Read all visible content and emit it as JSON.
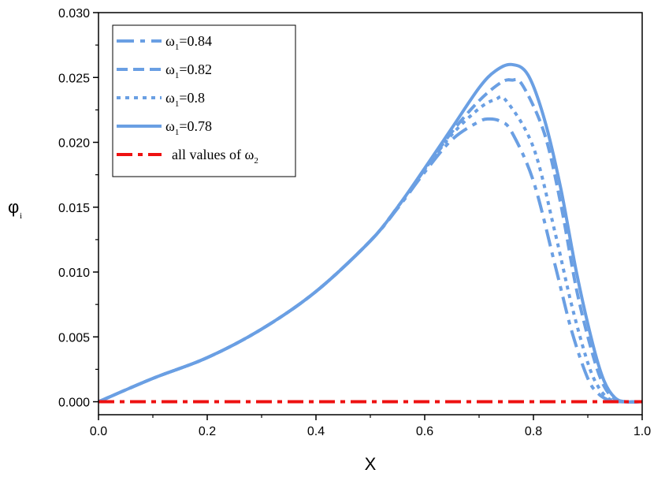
{
  "chart_data": {
    "type": "line",
    "xlabel": "X",
    "ylabel": {
      "base": "φ",
      "sub": "i"
    },
    "xlim": [
      0.0,
      1.0
    ],
    "ylim": [
      -0.001,
      0.03
    ],
    "x_ticks": [
      "0.0",
      "0.2",
      "0.4",
      "0.6",
      "0.8",
      "1.0"
    ],
    "y_ticks": [
      "0.000",
      "0.005",
      "0.010",
      "0.015",
      "0.020",
      "0.025",
      "0.030"
    ],
    "grid": false,
    "legend_position": "top-left",
    "colors": {
      "blue": "#6a9fe3",
      "red": "#ee1111"
    },
    "series": [
      {
        "name": "ω1=0.84",
        "legend_label": {
          "base": "ω",
          "sub": "1",
          "rest": "=0.84"
        },
        "color": "#6a9fe3",
        "style": "dash-dot",
        "x": [
          0.0,
          0.1,
          0.2,
          0.3,
          0.4,
          0.5,
          0.55,
          0.6,
          0.65,
          0.7,
          0.72,
          0.74,
          0.76,
          0.8,
          0.84,
          0.87,
          0.9,
          0.92,
          0.94,
          0.96,
          1.0
        ],
        "y": [
          0.0,
          0.0018,
          0.0034,
          0.0056,
          0.0085,
          0.0124,
          0.0149,
          0.0177,
          0.0202,
          0.0216,
          0.0218,
          0.0216,
          0.0208,
          0.017,
          0.0105,
          0.0055,
          0.0018,
          0.0006,
          0.0001,
          0.0,
          0.0
        ]
      },
      {
        "name": "ω1=0.82",
        "legend_label": {
          "base": "ω",
          "sub": "1",
          "rest": "=0.82"
        },
        "color": "#6a9fe3",
        "style": "dash",
        "x": [
          0.0,
          0.1,
          0.2,
          0.3,
          0.4,
          0.5,
          0.55,
          0.6,
          0.65,
          0.7,
          0.74,
          0.76,
          0.78,
          0.82,
          0.85,
          0.88,
          0.91,
          0.93,
          0.95,
          0.97,
          1.0
        ],
        "y": [
          0.0,
          0.0018,
          0.0034,
          0.0056,
          0.0085,
          0.0124,
          0.015,
          0.0179,
          0.0208,
          0.0232,
          0.0246,
          0.0248,
          0.0244,
          0.0207,
          0.0153,
          0.0085,
          0.0035,
          0.0012,
          0.0002,
          0.0,
          0.0
        ]
      },
      {
        "name": "ω1=0.8",
        "legend_label": {
          "base": "ω",
          "sub": "1",
          "rest": "=0.8"
        },
        "color": "#6a9fe3",
        "style": "dot",
        "x": [
          0.0,
          0.1,
          0.2,
          0.3,
          0.4,
          0.5,
          0.55,
          0.6,
          0.65,
          0.7,
          0.73,
          0.75,
          0.8,
          0.84,
          0.87,
          0.9,
          0.92,
          0.94,
          0.96,
          1.0
        ],
        "y": [
          0.0,
          0.0018,
          0.0034,
          0.0056,
          0.0085,
          0.0124,
          0.015,
          0.0179,
          0.0206,
          0.0226,
          0.0233,
          0.0232,
          0.0196,
          0.013,
          0.0075,
          0.003,
          0.0011,
          0.0002,
          0.0,
          0.0
        ]
      },
      {
        "name": "ω1=0.78",
        "legend_label": {
          "base": "ω",
          "sub": "1",
          "rest": "=0.78"
        },
        "color": "#6a9fe3",
        "style": "solid",
        "x": [
          0.0,
          0.1,
          0.2,
          0.3,
          0.4,
          0.5,
          0.55,
          0.6,
          0.65,
          0.7,
          0.73,
          0.76,
          0.79,
          0.82,
          0.85,
          0.88,
          0.91,
          0.93,
          0.95,
          0.97,
          1.0
        ],
        "y": [
          0.0,
          0.0018,
          0.0034,
          0.0056,
          0.0085,
          0.0124,
          0.015,
          0.018,
          0.0211,
          0.0242,
          0.0255,
          0.026,
          0.0252,
          0.0218,
          0.0165,
          0.0098,
          0.0043,
          0.0016,
          0.0003,
          0.0,
          0.0
        ]
      },
      {
        "name": "all values of ω2",
        "legend_label": {
          "base": "all values of ω",
          "sub": "2",
          "rest": ""
        },
        "color": "#ee1111",
        "style": "dash-dot-thick",
        "x": [
          0.0,
          1.0
        ],
        "y": [
          0.0,
          0.0
        ]
      }
    ]
  }
}
